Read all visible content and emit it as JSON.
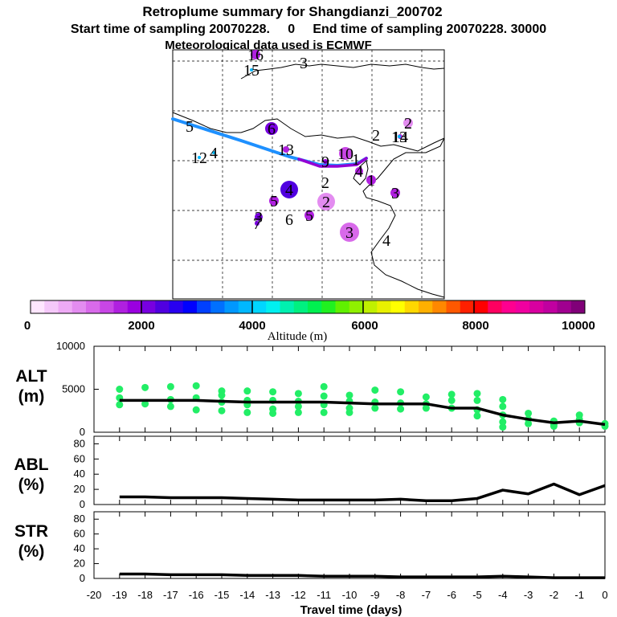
{
  "header": {
    "title": "Retroplume summary for Shangdianzi_200702",
    "subtitle": "Start time of sampling 20070228.     0     End time of sampling 20070228. 30000",
    "met": "Meteorological data used is ECMWF"
  },
  "map": {
    "markers": [
      {
        "label": "15",
        "value": 3900,
        "size": 2
      },
      {
        "label": "16",
        "value": 1500,
        "size": 6
      },
      {
        "label": "3",
        "value": 1500,
        "size": 0
      },
      {
        "label": "5",
        "value": 3300,
        "size": 0
      },
      {
        "label": "6",
        "value": 2200,
        "size": 8
      },
      {
        "label": "12",
        "value": 3900,
        "size": 2
      },
      {
        "label": "4",
        "value": 3900,
        "size": 2
      },
      {
        "label": "13",
        "value": 1500,
        "size": 4
      },
      {
        "label": "14",
        "value": 1500,
        "size": 3
      },
      {
        "label": "10",
        "value": 1300,
        "size": 8
      },
      {
        "label": "9",
        "value": 1800,
        "size": 3
      },
      {
        "label": "2",
        "value": 1300,
        "size": 0
      },
      {
        "label": "1",
        "value": 1300,
        "size": 0
      },
      {
        "label": "2",
        "value": 800,
        "size": 6
      },
      {
        "label": "13",
        "value": 3900,
        "size": 2
      },
      {
        "label": "2",
        "value": 700,
        "size": 0
      },
      {
        "label": "1",
        "value": 1500,
        "size": 6
      },
      {
        "label": "4",
        "value": 1700,
        "size": 5
      },
      {
        "label": "4",
        "value": 2300,
        "size": 11
      },
      {
        "label": "5",
        "value": 1600,
        "size": 6
      },
      {
        "label": "2",
        "value": 800,
        "size": 11
      },
      {
        "label": "3",
        "value": 1600,
        "size": 6
      },
      {
        "label": "6",
        "value": 1500,
        "size": 0
      },
      {
        "label": "5",
        "value": 1500,
        "size": 6
      },
      {
        "label": "3",
        "value": 2200,
        "size": 5
      },
      {
        "label": "7",
        "value": 2200,
        "size": 3
      },
      {
        "label": "3",
        "value": 1100,
        "size": 12
      },
      {
        "label": "4",
        "value": 1500,
        "size": 0
      }
    ]
  },
  "colorbar": {
    "labels": [
      "0",
      "2000",
      "4000",
      "6000",
      "8000",
      "10000"
    ],
    "title": "Altitude (m)",
    "colors": [
      "#ffe6ff",
      "#f5c8fa",
      "#eeaaf5",
      "#e38cf0",
      "#d86aea",
      "#c846e6",
      "#b020e0",
      "#9a00e0",
      "#7800e0",
      "#5000e0",
      "#2800f0",
      "#0000ff",
      "#0040ff",
      "#0070ff",
      "#0098ff",
      "#00b8ff",
      "#00d6ff",
      "#00f0f0",
      "#00f0b0",
      "#00f080",
      "#00f050",
      "#20f020",
      "#60f000",
      "#90f000",
      "#c0f000",
      "#e8f000",
      "#ffff00",
      "#ffd800",
      "#ffb000",
      "#ff8800",
      "#ff5800",
      "#ff2000",
      "#ff0000",
      "#ff0060",
      "#ff0090",
      "#f000a0",
      "#d800a0",
      "#c000a0",
      "#a00090",
      "#800078"
    ]
  },
  "chart_data": [
    {
      "type": "scatter",
      "panel": "ALT",
      "ylabel": "ALT\n(m)",
      "ylim": [
        0,
        10000
      ],
      "yticks": [
        "10000",
        "5000",
        "0"
      ],
      "x": [
        -19,
        -18,
        -17,
        -16,
        -15,
        -14,
        -13,
        -12,
        -11,
        -10,
        -9,
        -8,
        -7,
        -6,
        -5,
        -4,
        -3,
        -2,
        -1,
        0
      ],
      "series": [
        {
          "name": "mean altitude",
          "values": [
            3700,
            3700,
            3700,
            3700,
            3600,
            3500,
            3500,
            3500,
            3500,
            3400,
            3300,
            3300,
            3300,
            2800,
            2800,
            2000,
            1500,
            1100,
            1300,
            900
          ]
        },
        {
          "name": "particle altitudes",
          "points": [
            [
              -19,
              5000
            ],
            [
              -19,
              4000
            ],
            [
              -19,
              3200
            ],
            [
              -18,
              5200
            ],
            [
              -18,
              3300
            ],
            [
              -17,
              5300
            ],
            [
              -17,
              3800
            ],
            [
              -17,
              3000
            ],
            [
              -16,
              5400
            ],
            [
              -16,
              4000
            ],
            [
              -16,
              2600
            ],
            [
              -15,
              4800
            ],
            [
              -15,
              4300
            ],
            [
              -15,
              3500
            ],
            [
              -15,
              2500
            ],
            [
              -14,
              4800
            ],
            [
              -14,
              3700
            ],
            [
              -14,
              3200
            ],
            [
              -14,
              2300
            ],
            [
              -13,
              4700
            ],
            [
              -13,
              3700
            ],
            [
              -13,
              2700
            ],
            [
              -13,
              2200
            ],
            [
              -12,
              4500
            ],
            [
              -12,
              3600
            ],
            [
              -12,
              3000
            ],
            [
              -12,
              2300
            ],
            [
              -11,
              5300
            ],
            [
              -11,
              4200
            ],
            [
              -11,
              3200
            ],
            [
              -11,
              2300
            ],
            [
              -10,
              4300
            ],
            [
              -10,
              3600
            ],
            [
              -10,
              2800
            ],
            [
              -10,
              2300
            ],
            [
              -9,
              4900
            ],
            [
              -9,
              3500
            ],
            [
              -9,
              2800
            ],
            [
              -8,
              4700
            ],
            [
              -8,
              3400
            ],
            [
              -8,
              2700
            ],
            [
              -7,
              4100
            ],
            [
              -7,
              3300
            ],
            [
              -7,
              2800
            ],
            [
              -6,
              4400
            ],
            [
              -6,
              3700
            ],
            [
              -6,
              2800
            ],
            [
              -5,
              4500
            ],
            [
              -5,
              3700
            ],
            [
              -5,
              2600
            ],
            [
              -5,
              1900
            ],
            [
              -4,
              3800
            ],
            [
              -4,
              3000
            ],
            [
              -4,
              2000
            ],
            [
              -4,
              1200
            ],
            [
              -4,
              600
            ],
            [
              -3,
              2200
            ],
            [
              -3,
              1500
            ],
            [
              -3,
              1000
            ],
            [
              -2,
              1300
            ],
            [
              -2,
              900
            ],
            [
              -2,
              700
            ],
            [
              -1,
              2000
            ],
            [
              -1,
              1500
            ],
            [
              -1,
              1100
            ],
            [
              0,
              1000
            ],
            [
              0,
              700
            ]
          ]
        }
      ]
    },
    {
      "type": "line",
      "panel": "ABL",
      "ylabel": "ABL\n(%)",
      "ylim": [
        0,
        90
      ],
      "yticks": [
        "80",
        "60",
        "40",
        "20",
        "0"
      ],
      "x": [
        -19,
        -18,
        -17,
        -16,
        -15,
        -14,
        -13,
        -12,
        -11,
        -10,
        -9,
        -8,
        -7,
        -6,
        -5,
        -4,
        -3,
        -2,
        -1,
        0
      ],
      "series": [
        {
          "name": "ABL",
          "values": [
            10,
            10,
            9,
            9,
            9,
            8,
            7,
            6,
            6,
            6,
            6,
            7,
            5,
            5,
            8,
            19,
            14,
            27,
            13,
            25
          ]
        }
      ]
    },
    {
      "type": "line",
      "panel": "STR",
      "ylabel": "STR\n(%)",
      "ylim": [
        0,
        90
      ],
      "yticks": [
        "80",
        "60",
        "40",
        "20",
        "0"
      ],
      "x": [
        -19,
        -18,
        -17,
        -16,
        -15,
        -14,
        -13,
        -12,
        -11,
        -10,
        -9,
        -8,
        -7,
        -6,
        -5,
        -4,
        -3,
        -2,
        -1,
        0
      ],
      "series": [
        {
          "name": "STR",
          "values": [
            6,
            6,
            5,
            5,
            5,
            4,
            4,
            4,
            3,
            3,
            3,
            2,
            2,
            2,
            2,
            3,
            2,
            1,
            1,
            1
          ]
        }
      ]
    }
  ],
  "xaxis": {
    "title": "Travel time (days)",
    "ticks": [
      "-20",
      "-19",
      "-18",
      "-17",
      "-16",
      "-15",
      "-14",
      "-13",
      "-12",
      "-11",
      "-10",
      "-9",
      "-8",
      "-7",
      "-6",
      "-5",
      "-4",
      "-3",
      "-2",
      "-1",
      "0"
    ]
  }
}
